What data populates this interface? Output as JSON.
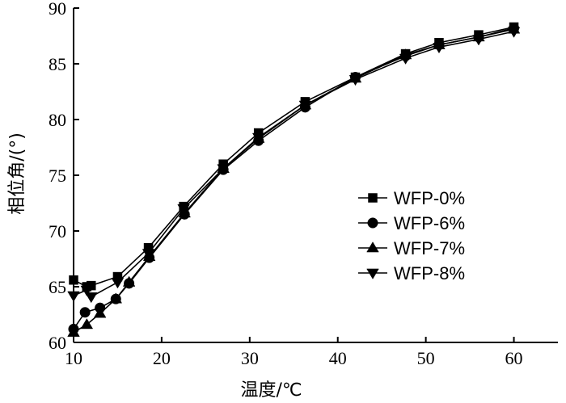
{
  "chart_data": {
    "type": "line",
    "title": "",
    "xlabel": "温度/℃",
    "ylabel": "相位角/(°)",
    "xlim": [
      10,
      65
    ],
    "ylim": [
      60,
      90
    ],
    "xticks": [
      10,
      20,
      30,
      40,
      50,
      60
    ],
    "yticks": [
      60,
      65,
      70,
      75,
      80,
      85,
      90
    ],
    "grid": false,
    "legend_position": "center-right",
    "series": [
      {
        "name": "WFP-0%",
        "marker": "square",
        "x": [
          10,
          11.5,
          12,
          15,
          18.5,
          22.5,
          27,
          31,
          36.3,
          42,
          47.7,
          51.5,
          56,
          60
        ],
        "y": [
          65.6,
          65.0,
          65.1,
          65.9,
          68.5,
          72.2,
          76.0,
          78.8,
          81.6,
          83.8,
          85.9,
          86.9,
          87.6,
          88.3
        ]
      },
      {
        "name": "WFP-6%",
        "marker": "circle",
        "x": [
          10,
          11.3,
          13,
          14.8,
          16.3,
          18.6,
          22.6,
          27,
          31,
          36.3,
          42,
          47.7,
          51.5,
          56,
          60
        ],
        "y": [
          61.2,
          62.7,
          63.1,
          63.9,
          65.3,
          67.6,
          71.5,
          75.5,
          78.1,
          81.1,
          83.8,
          85.7,
          86.7,
          87.4,
          88.2
        ]
      },
      {
        "name": "WFP-7%",
        "marker": "triangle-up",
        "x": [
          10,
          11.5,
          13,
          14.8,
          16.3,
          18.6,
          22.6,
          27,
          31,
          36.3,
          42,
          47.7,
          51.5,
          56,
          60
        ],
        "y": [
          60.9,
          61.6,
          62.6,
          63.9,
          65.4,
          67.7,
          71.6,
          75.6,
          78.3,
          81.3,
          83.7,
          85.8,
          86.7,
          87.4,
          88.1
        ]
      },
      {
        "name": "WFP-8%",
        "marker": "triangle-down",
        "x": [
          10,
          11.5,
          12,
          15,
          18.5,
          22.5,
          27,
          31,
          36.3,
          42,
          47.7,
          51.5,
          56,
          60
        ],
        "y": [
          64.2,
          64.7,
          64.1,
          65.4,
          68.0,
          72.0,
          75.6,
          78.4,
          81.3,
          83.6,
          85.5,
          86.5,
          87.2,
          87.9
        ]
      }
    ]
  }
}
